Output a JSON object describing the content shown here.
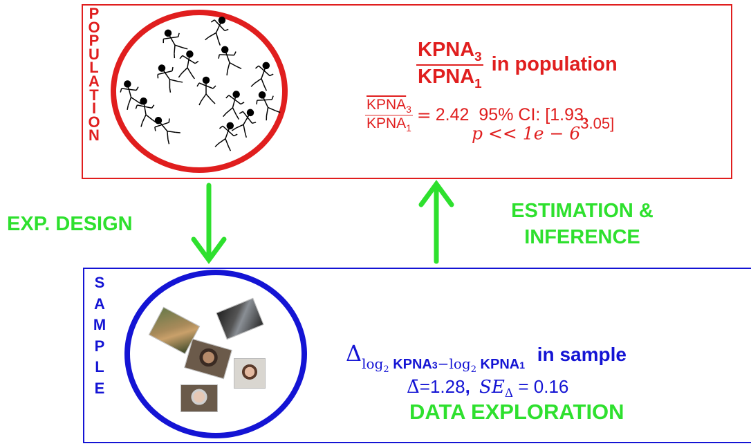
{
  "population": {
    "letters": [
      "P",
      "O",
      "P",
      "U",
      "L",
      "A",
      "T",
      "I",
      "O",
      "N"
    ],
    "title": {
      "num": "KPNA",
      "num_sub": "3",
      "den": "KPNA",
      "den_sub": "1",
      "suffix": "in population"
    },
    "estimate": {
      "num": "KPNA",
      "num_sub": "3",
      "den": "KPNA",
      "den_sub": "1",
      "eq": "=",
      "value": "2.42",
      "ci": "95% CI: [1.93,",
      "p_text": "p << 1e − 6",
      "ci_end": "3.05]"
    },
    "people_count": 14
  },
  "arrows": {
    "left_label": "EXP. DESIGN",
    "right_label_line1": "ESTIMATION &",
    "right_label_line2": "INFERENCE"
  },
  "sample": {
    "letters": [
      "S",
      "A",
      "M",
      "P",
      "L",
      "E"
    ],
    "title": {
      "delta": "Δ",
      "sub1_log": "log",
      "sub1_base": "2",
      "sub1_var": "KPNA",
      "sub1_var_sub": "3",
      "minus": "−",
      "sub2_log": "log",
      "sub2_base": "2",
      "sub2_var": "KPNA",
      "sub2_var_sub": "1",
      "suffix": "in sample"
    },
    "stats": {
      "mean_sym": "Δ̄",
      "mean_val": "=1.28",
      "sep": ",",
      "se_sym": "SE",
      "se_sub": "Δ",
      "se_val": "= 0.16"
    },
    "footer": "DATA EXPLORATION"
  },
  "colors": {
    "population": "#e01e1e",
    "sample": "#1414d4",
    "arrows": "#2ee02e"
  }
}
